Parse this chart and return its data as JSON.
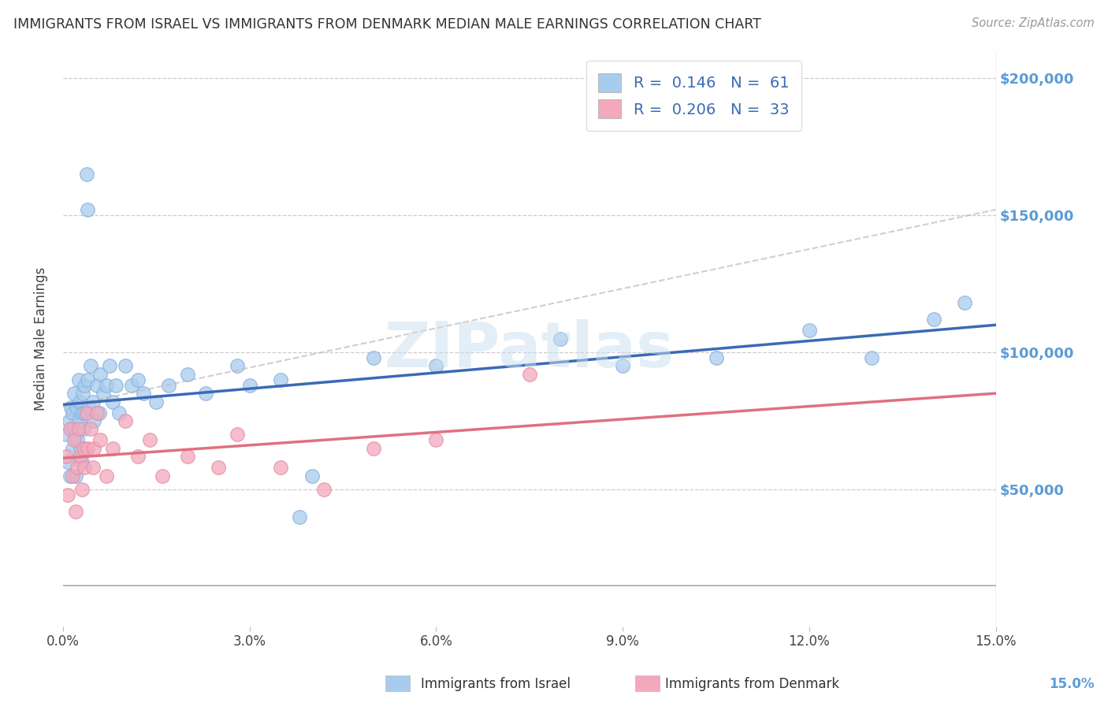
{
  "title": "IMMIGRANTS FROM ISRAEL VS IMMIGRANTS FROM DENMARK MEDIAN MALE EARNINGS CORRELATION CHART",
  "source": "Source: ZipAtlas.com",
  "ylabel": "Median Male Earnings",
  "watermark": "ZIPatlas",
  "israel_R": 0.146,
  "israel_N": 61,
  "denmark_R": 0.206,
  "denmark_N": 33,
  "israel_color": "#A8CCEE",
  "denmark_color": "#F4A8BC",
  "trend_israel_color": "#3A6AB5",
  "trend_denmark_color": "#E07080",
  "yticks": [
    0,
    50000,
    100000,
    150000,
    200000
  ],
  "ytick_labels_right": [
    "",
    "$50,000",
    "$100,000",
    "$150,000",
    "$200,000"
  ],
  "xticks": [
    0.0,
    0.03,
    0.06,
    0.09,
    0.12,
    0.15
  ],
  "xtick_labels": [
    "0.0%",
    "3.0%",
    "6.0%",
    "9.0%",
    "12.0%",
    "15.0%"
  ],
  "xmin": 0.0,
  "xmax": 0.15,
  "ymin": 15000,
  "ymax": 210000,
  "israel_x": [
    0.0005,
    0.0008,
    0.001,
    0.0012,
    0.0013,
    0.0015,
    0.0015,
    0.0017,
    0.0018,
    0.002,
    0.002,
    0.0022,
    0.0023,
    0.0025,
    0.0025,
    0.0027,
    0.0028,
    0.003,
    0.003,
    0.0032,
    0.0033,
    0.0035,
    0.0035,
    0.0038,
    0.004,
    0.004,
    0.0042,
    0.0045,
    0.0048,
    0.005,
    0.0055,
    0.0058,
    0.006,
    0.0065,
    0.007,
    0.0075,
    0.008,
    0.0085,
    0.009,
    0.01,
    0.011,
    0.012,
    0.013,
    0.015,
    0.017,
    0.02,
    0.023,
    0.028,
    0.03,
    0.035,
    0.038,
    0.04,
    0.05,
    0.06,
    0.08,
    0.09,
    0.105,
    0.12,
    0.13,
    0.14,
    0.145
  ],
  "israel_y": [
    70000,
    60000,
    75000,
    55000,
    80000,
    65000,
    78000,
    72000,
    85000,
    70000,
    55000,
    80000,
    68000,
    90000,
    75000,
    82000,
    65000,
    78000,
    60000,
    85000,
    72000,
    88000,
    78000,
    165000,
    152000,
    90000,
    80000,
    95000,
    82000,
    75000,
    88000,
    78000,
    92000,
    85000,
    88000,
    95000,
    82000,
    88000,
    78000,
    95000,
    88000,
    90000,
    85000,
    82000,
    88000,
    92000,
    85000,
    95000,
    88000,
    90000,
    40000,
    55000,
    98000,
    95000,
    105000,
    95000,
    98000,
    108000,
    98000,
    112000,
    118000
  ],
  "denmark_x": [
    0.0005,
    0.0008,
    0.0012,
    0.0015,
    0.0018,
    0.002,
    0.0023,
    0.0025,
    0.0028,
    0.003,
    0.0033,
    0.0035,
    0.0038,
    0.004,
    0.0045,
    0.0048,
    0.005,
    0.0055,
    0.006,
    0.007,
    0.008,
    0.01,
    0.012,
    0.014,
    0.016,
    0.02,
    0.025,
    0.028,
    0.035,
    0.042,
    0.05,
    0.06,
    0.075
  ],
  "denmark_y": [
    62000,
    48000,
    72000,
    55000,
    68000,
    42000,
    58000,
    72000,
    62000,
    50000,
    65000,
    58000,
    78000,
    65000,
    72000,
    58000,
    65000,
    78000,
    68000,
    55000,
    65000,
    75000,
    62000,
    68000,
    55000,
    62000,
    58000,
    70000,
    58000,
    50000,
    65000,
    68000,
    92000
  ]
}
